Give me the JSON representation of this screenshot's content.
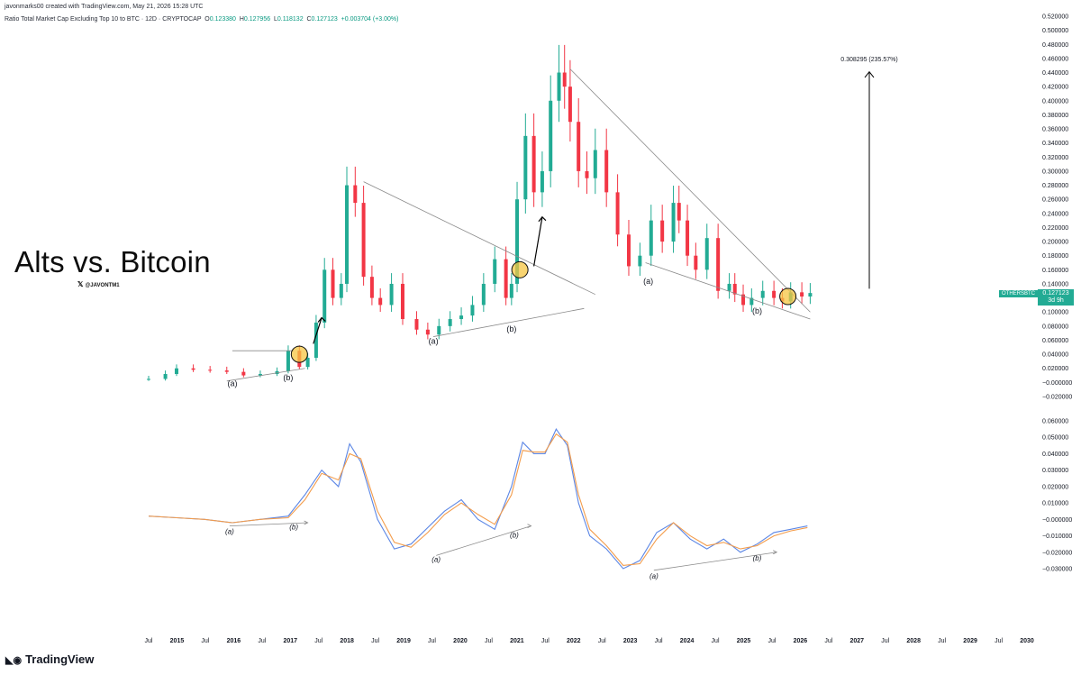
{
  "header": {
    "credit": "javonmarks00 created with TradingView.com, May 21, 2026 15:28 UTC",
    "symbol": "Ratio Total Market Cap Excluding Top 10 to BTC · 12D · CRYPTOCAP",
    "o_label": "O",
    "o_value": "0.123380",
    "h_label": "H",
    "h_value": "0.127956",
    "l_label": "L",
    "l_value": "0.118132",
    "c_label": "C",
    "c_value": "0.127123",
    "change": "+0.003704 (+3.00%)"
  },
  "title": "Alts vs. Bitcoin",
  "handle": "@JAVONTM1",
  "brand": "TradingView",
  "current_price_tag": {
    "symbol": "OTHERSBTC",
    "price": "0.127123",
    "countdown": "3d 9h"
  },
  "target_label": "0.308295 (235.57%)",
  "colors": {
    "up": "#22ab94",
    "down": "#f23645",
    "ma_fast": "#5b86e5",
    "ma_slow": "#f39c4b",
    "line": "#8a8a8a",
    "circle": "#f5c542"
  },
  "icons": {
    "brand_logo": "tradingview-logo-icon",
    "x_logo": "x-logo-icon"
  },
  "chart_data": [
    {
      "type": "candlestick",
      "title": "Ratio Total Market Cap Excluding Top 10 to BTC",
      "ylim": [
        -0.02,
        0.52
      ],
      "y_ticks": [
        "0.520000",
        "0.500000",
        "0.480000",
        "0.460000",
        "0.440000",
        "0.420000",
        "0.400000",
        "0.380000",
        "0.360000",
        "0.340000",
        "0.320000",
        "0.300000",
        "0.280000",
        "0.260000",
        "0.240000",
        "0.220000",
        "0.200000",
        "0.180000",
        "0.160000",
        "0.140000",
        "0.120000",
        "0.100000",
        "0.080000",
        "0.060000",
        "0.040000",
        "0.020000",
        "−0.000000",
        "−0.020000"
      ],
      "x_ticks": [
        "Jul",
        "2015",
        "Jul",
        "2016",
        "Jul",
        "2017",
        "Jul",
        "2018",
        "Jul",
        "2019",
        "Jul",
        "2020",
        "Jul",
        "2021",
        "Jul",
        "2022",
        "Jul",
        "2023",
        "Jul",
        "2024",
        "Jul",
        "2025",
        "Jul",
        "2026",
        "Jul",
        "2027",
        "Jul",
        "2028",
        "Jul",
        "2029",
        "Jul",
        "2030"
      ],
      "x": [
        2014.5,
        2014.8,
        2015.0,
        2015.3,
        2015.6,
        2015.9,
        2016.2,
        2016.5,
        2016.8,
        2017.0,
        2017.2,
        2017.35,
        2017.5,
        2017.65,
        2017.8,
        2017.95,
        2018.05,
        2018.2,
        2018.35,
        2018.5,
        2018.65,
        2018.85,
        2019.05,
        2019.3,
        2019.5,
        2019.7,
        2019.9,
        2020.1,
        2020.3,
        2020.5,
        2020.7,
        2020.9,
        2021.0,
        2021.1,
        2021.25,
        2021.4,
        2021.55,
        2021.7,
        2021.85,
        2021.95,
        2022.05,
        2022.2,
        2022.35,
        2022.5,
        2022.7,
        2022.9,
        2023.1,
        2023.3,
        2023.5,
        2023.7,
        2023.9,
        2024.0,
        2024.15,
        2024.3,
        2024.5,
        2024.7,
        2024.9,
        2025.0,
        2025.15,
        2025.3,
        2025.5,
        2025.7,
        2025.85,
        2026.0,
        2026.2,
        2026.35
      ],
      "close": [
        0.005,
        0.012,
        0.02,
        0.018,
        0.017,
        0.015,
        0.01,
        0.012,
        0.016,
        0.045,
        0.022,
        0.035,
        0.085,
        0.16,
        0.12,
        0.14,
        0.28,
        0.255,
        0.15,
        0.12,
        0.11,
        0.14,
        0.09,
        0.075,
        0.068,
        0.08,
        0.09,
        0.095,
        0.11,
        0.14,
        0.175,
        0.12,
        0.14,
        0.26,
        0.35,
        0.27,
        0.3,
        0.4,
        0.44,
        0.42,
        0.37,
        0.3,
        0.29,
        0.33,
        0.27,
        0.21,
        0.165,
        0.18,
        0.23,
        0.2,
        0.255,
        0.23,
        0.18,
        0.16,
        0.205,
        0.13,
        0.14,
        0.125,
        0.11,
        0.12,
        0.13,
        0.12,
        0.115,
        0.128,
        0.122,
        0.127
      ],
      "series": [
        {
          "name": "Candles"
        }
      ],
      "annotations": [
        {
          "text": "(a)",
          "x": 2016.0,
          "y": -0.005
        },
        {
          "text": "(b)",
          "x": 2017.0,
          "y": 0.003
        },
        {
          "text": "(a)",
          "x": 2019.6,
          "y": 0.055
        },
        {
          "text": "(b)",
          "x": 2021.0,
          "y": 0.072
        },
        {
          "text": "(a)",
          "x": 2023.45,
          "y": 0.14
        },
        {
          "text": "(b)",
          "x": 2025.4,
          "y": 0.098
        }
      ],
      "target": {
        "price": 0.308295,
        "pct": "235.57%"
      }
    },
    {
      "type": "line",
      "ylim": [
        -0.035,
        0.065
      ],
      "y_ticks": [
        "0.060000",
        "0.050000",
        "0.040000",
        "0.030000",
        "0.020000",
        "0.010000",
        "−0.000000",
        "−0.010000",
        "−0.020000",
        "−0.030000"
      ],
      "x": [
        2014.5,
        2015.0,
        2015.5,
        2016.0,
        2016.5,
        2017.0,
        2017.3,
        2017.6,
        2017.9,
        2018.1,
        2018.3,
        2018.6,
        2018.9,
        2019.2,
        2019.5,
        2019.8,
        2020.1,
        2020.4,
        2020.7,
        2021.0,
        2021.2,
        2021.4,
        2021.6,
        2021.8,
        2022.0,
        2022.2,
        2022.4,
        2022.7,
        2023.0,
        2023.3,
        2023.6,
        2023.9,
        2024.2,
        2024.5,
        2024.8,
        2025.1,
        2025.4,
        2025.7,
        2026.0,
        2026.3
      ],
      "series": [
        {
          "name": "",
          "values": [
            0.002,
            0.001,
            0.0,
            -0.002,
            0.0,
            0.002,
            0.015,
            0.03,
            0.02,
            0.046,
            0.035,
            0.0,
            -0.018,
            -0.015,
            -0.005,
            0.005,
            0.012,
            0.0,
            -0.006,
            0.02,
            0.047,
            0.04,
            0.04,
            0.055,
            0.045,
            0.01,
            -0.01,
            -0.018,
            -0.03,
            -0.025,
            -0.008,
            -0.002,
            -0.012,
            -0.018,
            -0.012,
            -0.02,
            -0.015,
            -0.008,
            -0.006,
            -0.004
          ]
        },
        {
          "name": "",
          "values": [
            0.002,
            0.001,
            0.0,
            -0.002,
            0.0,
            0.001,
            0.012,
            0.028,
            0.024,
            0.04,
            0.037,
            0.005,
            -0.014,
            -0.017,
            -0.008,
            0.003,
            0.01,
            0.003,
            -0.003,
            0.015,
            0.042,
            0.041,
            0.041,
            0.052,
            0.047,
            0.015,
            -0.006,
            -0.016,
            -0.028,
            -0.027,
            -0.012,
            -0.002,
            -0.01,
            -0.016,
            -0.014,
            -0.018,
            -0.016,
            -0.01,
            -0.007,
            -0.005
          ]
        }
      ],
      "annotations": [
        {
          "text": "(a)",
          "x": 2015.95,
          "y": -0.009
        },
        {
          "text": "(b)",
          "x": 2017.1,
          "y": -0.006
        },
        {
          "text": "(a)",
          "x": 2019.65,
          "y": -0.026
        },
        {
          "text": "(b)",
          "x": 2021.05,
          "y": -0.011
        },
        {
          "text": "(a)",
          "x": 2023.55,
          "y": -0.036
        },
        {
          "text": "(b)",
          "x": 2025.4,
          "y": -0.025
        }
      ]
    }
  ]
}
